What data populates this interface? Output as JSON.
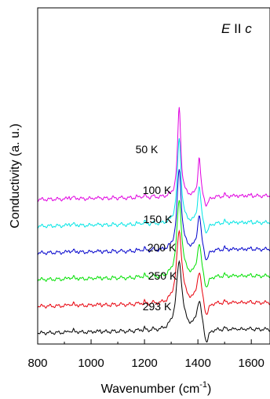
{
  "chart_data": {
    "type": "line",
    "xlabel": "Wavenumber (cm",
    "xlabel_sup": "-1",
    "xlabel_close": ")",
    "ylabel": "Conductivity (a. u.)",
    "annotation": {
      "italic": "E",
      "rest": " II ",
      "italic2": "c"
    },
    "xlim": [
      800,
      1670
    ],
    "x_ticks": [
      800,
      1000,
      1200,
      1400,
      1600
    ],
    "y_ticks_shown": false,
    "series": [
      {
        "name": "293 K",
        "color": "#000000",
        "offset": 0
      },
      {
        "name": "250 K",
        "color": "#e8000b",
        "offset": 1
      },
      {
        "name": "200 K",
        "color": "#00e000",
        "offset": 2
      },
      {
        "name": "150 K",
        "color": "#0000cc",
        "offset": 3
      },
      {
        "name": "100 K",
        "color": "#00e5e5",
        "offset": 4
      },
      {
        "name": "50 K",
        "color": "#e000e0",
        "offset": 5
      }
    ]
  }
}
